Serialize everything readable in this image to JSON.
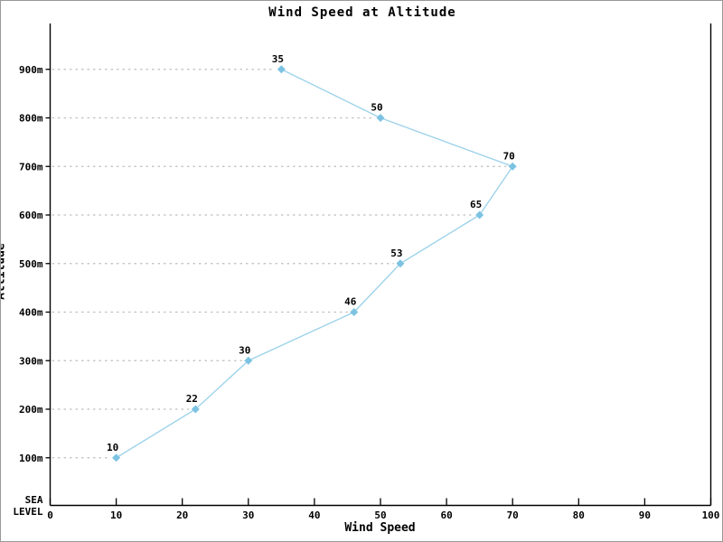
{
  "window": {
    "background": "#ffffff",
    "border_color": "#999999"
  },
  "chart_data": {
    "type": "line",
    "title": "Wind Speed at Altitude",
    "xlabel": "Wind Speed",
    "ylabel": "Altitude",
    "series": [
      {
        "name": "wind-speed-profile",
        "points": [
          {
            "altitude_m": 100,
            "speed": 10,
            "label": "10"
          },
          {
            "altitude_m": 200,
            "speed": 22,
            "label": "22"
          },
          {
            "altitude_m": 300,
            "speed": 30,
            "label": "30"
          },
          {
            "altitude_m": 400,
            "speed": 46,
            "label": "46"
          },
          {
            "altitude_m": 500,
            "speed": 53,
            "label": "53"
          },
          {
            "altitude_m": 600,
            "speed": 65,
            "label": "65"
          },
          {
            "altitude_m": 700,
            "speed": 70,
            "label": "70"
          },
          {
            "altitude_m": 800,
            "speed": 50,
            "label": "50"
          },
          {
            "altitude_m": 900,
            "speed": 35,
            "label": "35"
          }
        ]
      }
    ],
    "xticks": [
      0,
      10,
      20,
      30,
      40,
      50,
      60,
      70,
      80,
      90,
      100
    ],
    "yticks": [
      {
        "altitude_m": 0,
        "label_lines": [
          "SEA",
          "LEVEL"
        ]
      },
      {
        "altitude_m": 100,
        "label_lines": [
          "100m"
        ]
      },
      {
        "altitude_m": 200,
        "label_lines": [
          "200m"
        ]
      },
      {
        "altitude_m": 300,
        "label_lines": [
          "300m"
        ]
      },
      {
        "altitude_m": 400,
        "label_lines": [
          "400m"
        ]
      },
      {
        "altitude_m": 500,
        "label_lines": [
          "500m"
        ]
      },
      {
        "altitude_m": 600,
        "label_lines": [
          "600m"
        ]
      },
      {
        "altitude_m": 700,
        "label_lines": [
          "700m"
        ]
      },
      {
        "altitude_m": 800,
        "label_lines": [
          "800m"
        ]
      },
      {
        "altitude_m": 900,
        "label_lines": [
          "900m"
        ]
      }
    ],
    "xlim": [
      0,
      100
    ],
    "ylim_m": [
      0,
      1000
    ],
    "grid": "dashed horizontal leader line from y-axis to each data point",
    "legend": "none",
    "marker": "diamond",
    "colors": {
      "line": "#9ED3EA",
      "marker": "#7CC3E2",
      "grid": "#BFBFBF",
      "axis": "#000000",
      "text": "#000000"
    }
  }
}
